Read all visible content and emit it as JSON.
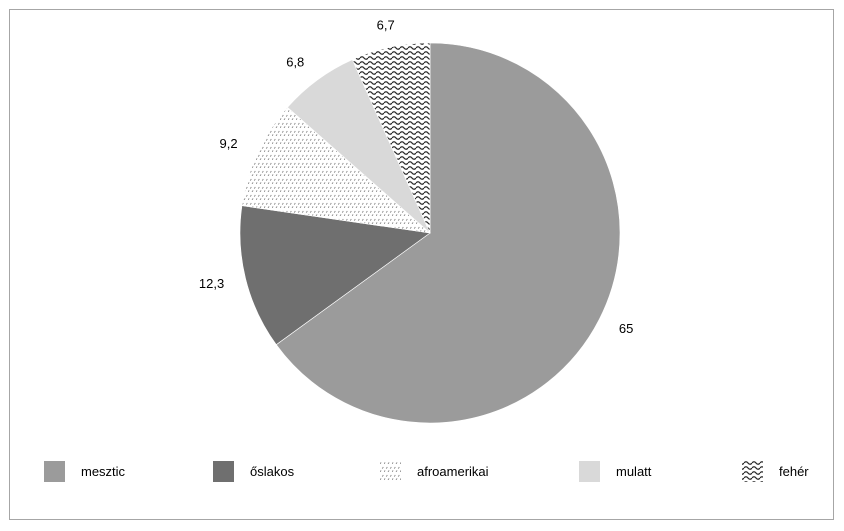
{
  "chart_data": {
    "type": "pie",
    "categories": [
      "mesztic",
      "őslakos",
      "afroamerikai",
      "mulatt",
      "fehér"
    ],
    "values": [
      65,
      12.3,
      9.2,
      6.8,
      6.7
    ],
    "value_labels": [
      "65",
      "12,3",
      "9,2",
      "6,8",
      "6,7"
    ],
    "legend": [
      "mesztic",
      "őslakos",
      "afroamerikai",
      "mulatt",
      "fehér"
    ],
    "legend_placement": "bottom",
    "title": "",
    "colors": [
      "#9b9b9b",
      "#6f6f6f",
      "pattern-dashes",
      "#d9d9d9",
      "pattern-waves"
    ]
  }
}
